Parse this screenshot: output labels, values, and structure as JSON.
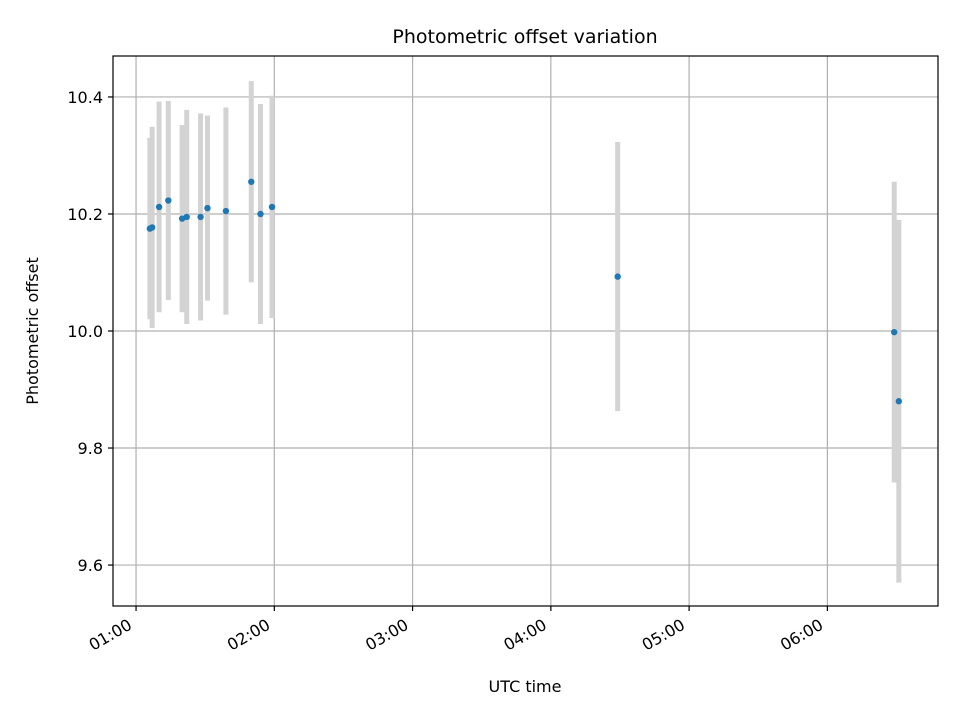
{
  "chart_data": {
    "type": "scatter",
    "title": "Photometric offset variation",
    "xlabel": "UTC time",
    "ylabel": "Photometric offset",
    "x_ticks": [
      "01:00",
      "02:00",
      "03:00",
      "04:00",
      "05:00",
      "06:00"
    ],
    "x_tick_hours": [
      1,
      2,
      3,
      4,
      5,
      6
    ],
    "y_ticks": [
      "9.6",
      "9.8",
      "10.0",
      "10.2",
      "10.4"
    ],
    "y_tick_values": [
      9.6,
      9.8,
      10.0,
      10.2,
      10.4
    ],
    "xlim": [
      "00:50",
      "06:48"
    ],
    "ylim": [
      9.53,
      10.47
    ],
    "grid": true,
    "marker_color": "#1f77b4",
    "errorbar_color": "#d3d3d3",
    "points": [
      {
        "time": "01:06",
        "y": 10.175,
        "err": 0.155
      },
      {
        "time": "01:07",
        "y": 10.177,
        "err": 0.172
      },
      {
        "time": "01:10",
        "y": 10.212,
        "err": 0.18
      },
      {
        "time": "01:14",
        "y": 10.223,
        "err": 0.17
      },
      {
        "time": "01:20",
        "y": 10.192,
        "err": 0.16
      },
      {
        "time": "01:22",
        "y": 10.195,
        "err": 0.183
      },
      {
        "time": "01:28",
        "y": 10.195,
        "err": 0.177
      },
      {
        "time": "01:31",
        "y": 10.21,
        "err": 0.158
      },
      {
        "time": "01:39",
        "y": 10.205,
        "err": 0.177
      },
      {
        "time": "01:50",
        "y": 10.255,
        "err": 0.172
      },
      {
        "time": "01:54",
        "y": 10.2,
        "err": 0.188
      },
      {
        "time": "01:59",
        "y": 10.212,
        "err": 0.19
      },
      {
        "time": "04:29",
        "y": 10.093,
        "err": 0.23
      },
      {
        "time": "06:29",
        "y": 9.998,
        "err": 0.257
      },
      {
        "time": "06:31",
        "y": 9.88,
        "err": 0.31
      }
    ]
  }
}
